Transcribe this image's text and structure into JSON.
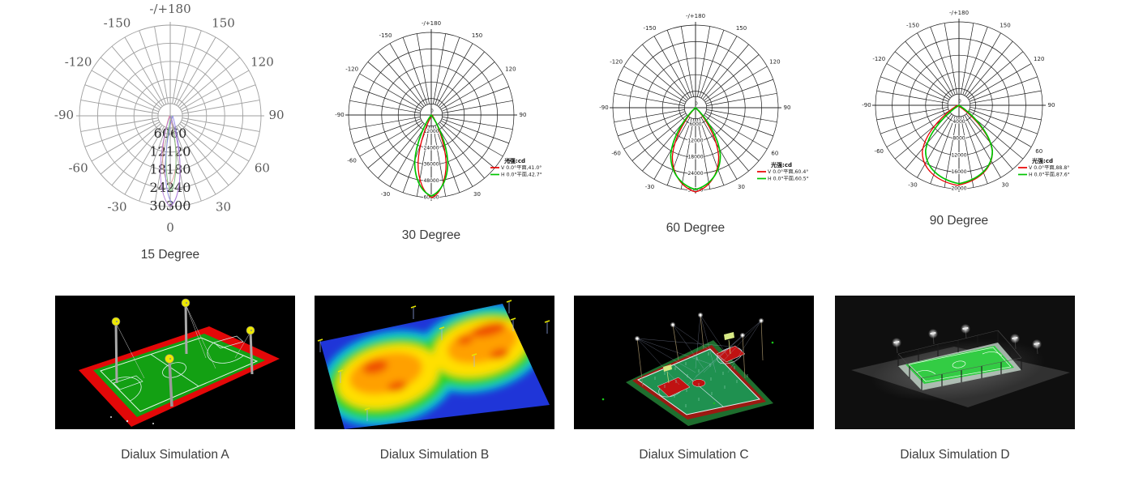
{
  "page": {
    "background": "#ffffff"
  },
  "chart_data": [
    {
      "type": "polar",
      "title": "15 Degree",
      "unit": "cd",
      "rings": 5,
      "angle_tick_step_deg": 10,
      "angle_labels": [
        {
          "angle": 180,
          "text": "-/+180"
        },
        {
          "angle": -150,
          "text": "-150"
        },
        {
          "angle": 150,
          "text": "150"
        },
        {
          "angle": -120,
          "text": "-120"
        },
        {
          "angle": 120,
          "text": "120"
        },
        {
          "angle": -90,
          "text": "-90"
        },
        {
          "angle": 90,
          "text": "90"
        },
        {
          "angle": -60,
          "text": "-60"
        },
        {
          "angle": 60,
          "text": "60"
        },
        {
          "angle": -30,
          "text": "-30"
        },
        {
          "angle": 30,
          "text": "30"
        },
        {
          "angle": 0,
          "text": "0"
        }
      ],
      "radial_tick_labels": [
        "6060",
        "12120",
        "18180",
        "24240",
        "30300"
      ],
      "center_label": "",
      "grid_color": "#9f9f9f",
      "label_style": "serif",
      "legend": null,
      "series": [
        {
          "name": "lobe-pink",
          "color": "#df9494",
          "peak_fraction": 0.76,
          "width_fraction": 0.075,
          "dx": -1,
          "stroke_width": 0.9
        },
        {
          "name": "lobe-green",
          "color": "#7cc07c",
          "peak_fraction": 0.83,
          "width_fraction": 0.055,
          "dx": 1,
          "stroke_width": 0.9
        },
        {
          "name": "lobe-blue",
          "color": "#8a84e2",
          "peak_fraction": 0.97,
          "width_fraction": 0.082,
          "dx": 3,
          "stroke_width": 0.9
        },
        {
          "name": "lobe-purple",
          "color": "#b47ad8",
          "peak_fraction": 1.0,
          "width_fraction": 0.11,
          "dx": 0,
          "stroke_width": 0.9
        }
      ]
    },
    {
      "type": "polar",
      "title": "30 Degree",
      "unit": "cd",
      "rings": 5,
      "angle_tick_step_deg": 10,
      "angle_labels": [
        {
          "angle": 180,
          "text": "-/+180"
        },
        {
          "angle": -150,
          "text": "-150"
        },
        {
          "angle": 150,
          "text": "150"
        },
        {
          "angle": -120,
          "text": "-120"
        },
        {
          "angle": 120,
          "text": "120"
        },
        {
          "angle": -90,
          "text": "-90"
        },
        {
          "angle": 90,
          "text": "90"
        },
        {
          "angle": -60,
          "text": "-60"
        },
        {
          "angle": 60,
          "text": "60"
        },
        {
          "angle": -30,
          "text": "-30"
        },
        {
          "angle": 30,
          "text": "30"
        }
      ],
      "radial_tick_labels": [
        "12000",
        "24000",
        "36000",
        "48000",
        "60000"
      ],
      "center_label": "0",
      "grid_color": "#1c1c1c",
      "label_style": "sans",
      "legend": {
        "title": "光强:cd",
        "entries": [
          {
            "color": "#e80000",
            "label": "V 0.0°平面,41.0°"
          },
          {
            "color": "#00c400",
            "label": "H 0.0°平面,42.7°"
          }
        ]
      },
      "series": [
        {
          "name": "V-plane",
          "color": "#e80000",
          "peak_fraction": 1.0,
          "width_fraction": 0.17,
          "dx": 1,
          "stroke_width": 1.3
        },
        {
          "name": "H-plane",
          "color": "#00c400",
          "peak_fraction": 0.98,
          "width_fraction": 0.2,
          "dx": 0,
          "stroke_width": 1.7
        }
      ]
    },
    {
      "type": "polar",
      "title": "60 Degree",
      "unit": "cd",
      "rings": 5,
      "angle_tick_step_deg": 10,
      "angle_labels": [
        {
          "angle": 180,
          "text": "-/+180"
        },
        {
          "angle": -150,
          "text": "-150"
        },
        {
          "angle": 150,
          "text": "150"
        },
        {
          "angle": -120,
          "text": "-120"
        },
        {
          "angle": 120,
          "text": "120"
        },
        {
          "angle": -90,
          "text": "-90"
        },
        {
          "angle": 90,
          "text": "90"
        },
        {
          "angle": -60,
          "text": "-60"
        },
        {
          "angle": 60,
          "text": "60"
        },
        {
          "angle": -30,
          "text": "-30"
        },
        {
          "angle": 30,
          "text": "30"
        }
      ],
      "radial_tick_labels": [
        "6000",
        "12000",
        "18000",
        "24000",
        "30000"
      ],
      "center_label": "0",
      "grid_color": "#1c1c1c",
      "label_style": "sans",
      "legend": {
        "title": "光强:cd",
        "entries": [
          {
            "color": "#e80000",
            "label": "V 0.0°平面,60.4°"
          },
          {
            "color": "#00c400",
            "label": "H 0.0°平面,60.5°"
          }
        ]
      },
      "series": [
        {
          "name": "V-plane",
          "color": "#e80000",
          "peak_fraction": 1.02,
          "width_fraction": 0.28,
          "dx": 0,
          "stroke_width": 1.3
        },
        {
          "name": "H-plane",
          "color": "#00c400",
          "peak_fraction": 0.99,
          "width_fraction": 0.3,
          "dx": 0,
          "stroke_width": 1.7
        }
      ]
    },
    {
      "type": "polar",
      "title": "90 Degree",
      "unit": "cd",
      "rings": 5,
      "angle_tick_step_deg": 10,
      "angle_labels": [
        {
          "angle": 180,
          "text": "-/+180"
        },
        {
          "angle": -150,
          "text": "-150"
        },
        {
          "angle": 150,
          "text": "150"
        },
        {
          "angle": -120,
          "text": "-120"
        },
        {
          "angle": 120,
          "text": "120"
        },
        {
          "angle": -90,
          "text": "-90"
        },
        {
          "angle": 90,
          "text": "90"
        },
        {
          "angle": -60,
          "text": "-60"
        },
        {
          "angle": 60,
          "text": "60"
        },
        {
          "angle": -30,
          "text": "-30"
        },
        {
          "angle": 30,
          "text": "30"
        }
      ],
      "radial_tick_labels": [
        "4000",
        "8000",
        "12000",
        "16000",
        "20000"
      ],
      "center_label": "0",
      "grid_color": "#1c1c1c",
      "label_style": "sans",
      "legend": {
        "title": "光强:cd",
        "entries": [
          {
            "color": "#e80000",
            "label": "V 0.0°平面,88.8°"
          },
          {
            "color": "#00c400",
            "label": "H 0.0°平面,87.6°"
          }
        ]
      },
      "series": [
        {
          "name": "V-plane",
          "color": "#e80000",
          "peak_fraction": 0.96,
          "width_fraction": 0.42,
          "dx": -2,
          "stroke_width": 1.3
        },
        {
          "name": "H-plane",
          "color": "#00c400",
          "peak_fraction": 0.94,
          "width_fraction": 0.4,
          "dx": 0,
          "stroke_width": 1.7
        }
      ]
    }
  ],
  "simulations": [
    {
      "caption": "Dialux Simulation A",
      "scene": "court-3d-render"
    },
    {
      "caption": "Dialux Simulation B",
      "scene": "false-color-illuminance-map"
    },
    {
      "caption": "Dialux Simulation C",
      "scene": "wireframe-light-rays-render"
    },
    {
      "caption": "Dialux Simulation D",
      "scene": "night-scene-render"
    }
  ]
}
